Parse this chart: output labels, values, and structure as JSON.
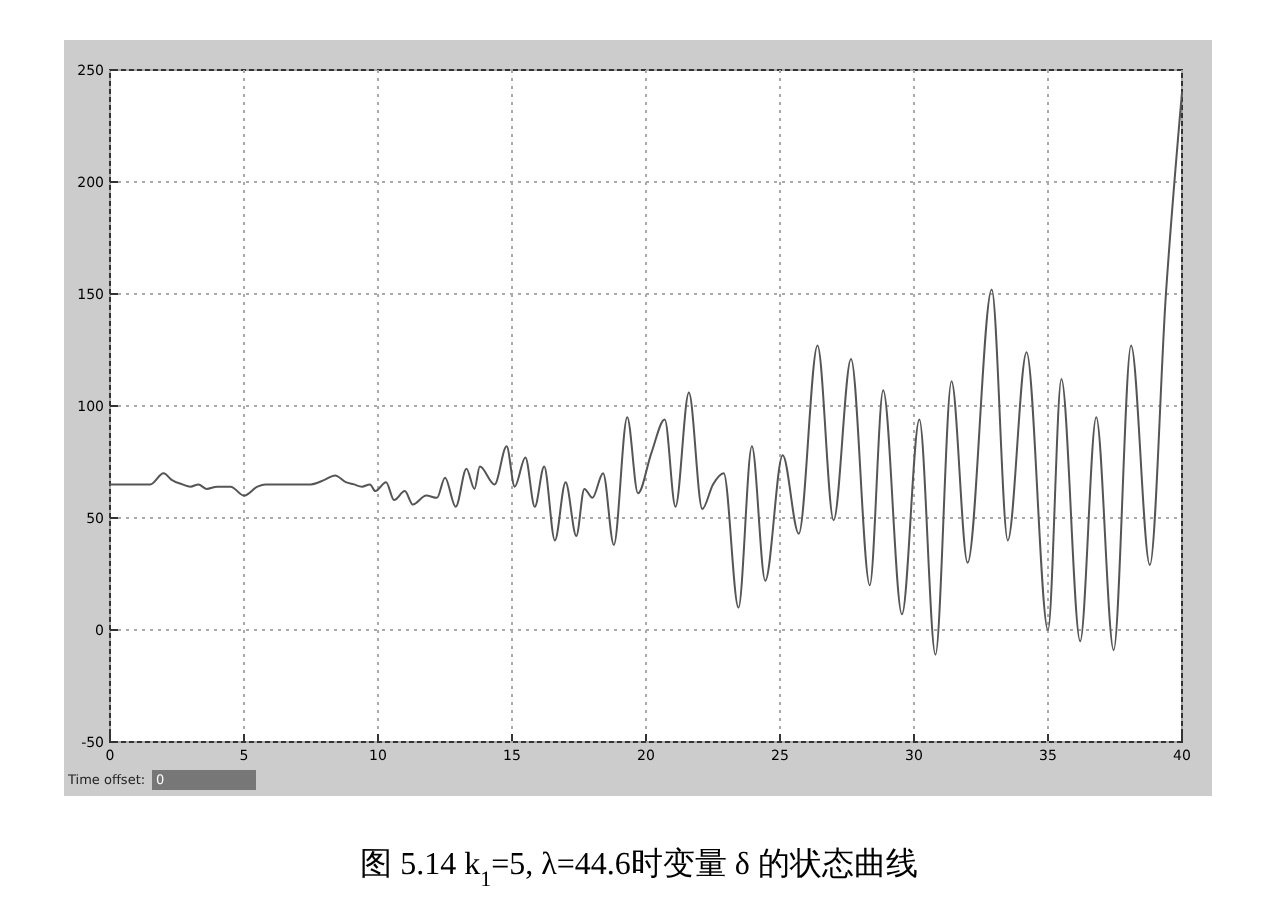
{
  "chart_data": {
    "type": "line",
    "title": "图 5.14 k$_{1}$=5, λ=44.6时变量 δ 的状态曲线",
    "annotations": [
      "Time offset:",
      "0"
    ],
    "xlim": [
      0,
      40
    ],
    "ylim": [
      -50,
      250
    ],
    "xticks": [
      0,
      5,
      10,
      15,
      20,
      25,
      30,
      35,
      40
    ],
    "yticks": [
      -50,
      0,
      50,
      100,
      150,
      200,
      250
    ],
    "grid": true,
    "line_style": "solid",
    "marker": "none",
    "series": [
      {
        "color": "#555555",
        "x": [
          0,
          1.5,
          2.0,
          2.3,
          2.7,
          3.0,
          3.3,
          3.6,
          4.0,
          4.5,
          5.0,
          5.5,
          5.8,
          6.5,
          7.5,
          8.0,
          8.4,
          8.8,
          9.1,
          9.4,
          9.7,
          9.9,
          10.3,
          10.6,
          11.0,
          11.3,
          11.8,
          12.2,
          12.5,
          12.9,
          13.3,
          13.6,
          13.8,
          14.35,
          14.8,
          15.1,
          15.5,
          15.85,
          16.2,
          16.6,
          17.0,
          17.4,
          17.7,
          18.0,
          18.4,
          18.8,
          19.3,
          19.7,
          20.2,
          20.7,
          21.1,
          21.6,
          22.1,
          22.5,
          22.9,
          23.45,
          23.95,
          24.45,
          25.1,
          25.7,
          26.4,
          27.0,
          27.65,
          28.35,
          28.85,
          29.55,
          30.2,
          30.8,
          31.4,
          32.0,
          32.9,
          33.5,
          34.2,
          35.0,
          35.5,
          36.2,
          36.8,
          37.45,
          38.1,
          38.8,
          39.4,
          40
        ],
        "values": [
          65,
          65,
          70,
          67,
          65,
          64,
          65,
          63,
          64,
          64,
          60,
          64,
          65,
          65,
          65,
          67,
          69,
          66,
          65,
          64,
          65,
          62,
          66,
          58,
          62,
          56,
          60,
          59,
          68,
          55,
          72,
          63,
          73,
          65,
          82,
          64,
          77,
          55,
          73,
          40,
          66,
          42,
          63,
          59,
          70,
          38,
          95,
          61,
          79,
          94,
          55,
          106,
          54,
          65,
          70,
          10,
          82,
          22,
          78,
          43,
          127,
          49,
          121,
          20,
          107,
          7,
          94,
          -11,
          111,
          30,
          152,
          40,
          124,
          0,
          112,
          -5,
          95,
          -9,
          127,
          29,
          150,
          240
        ]
      }
    ]
  }
}
